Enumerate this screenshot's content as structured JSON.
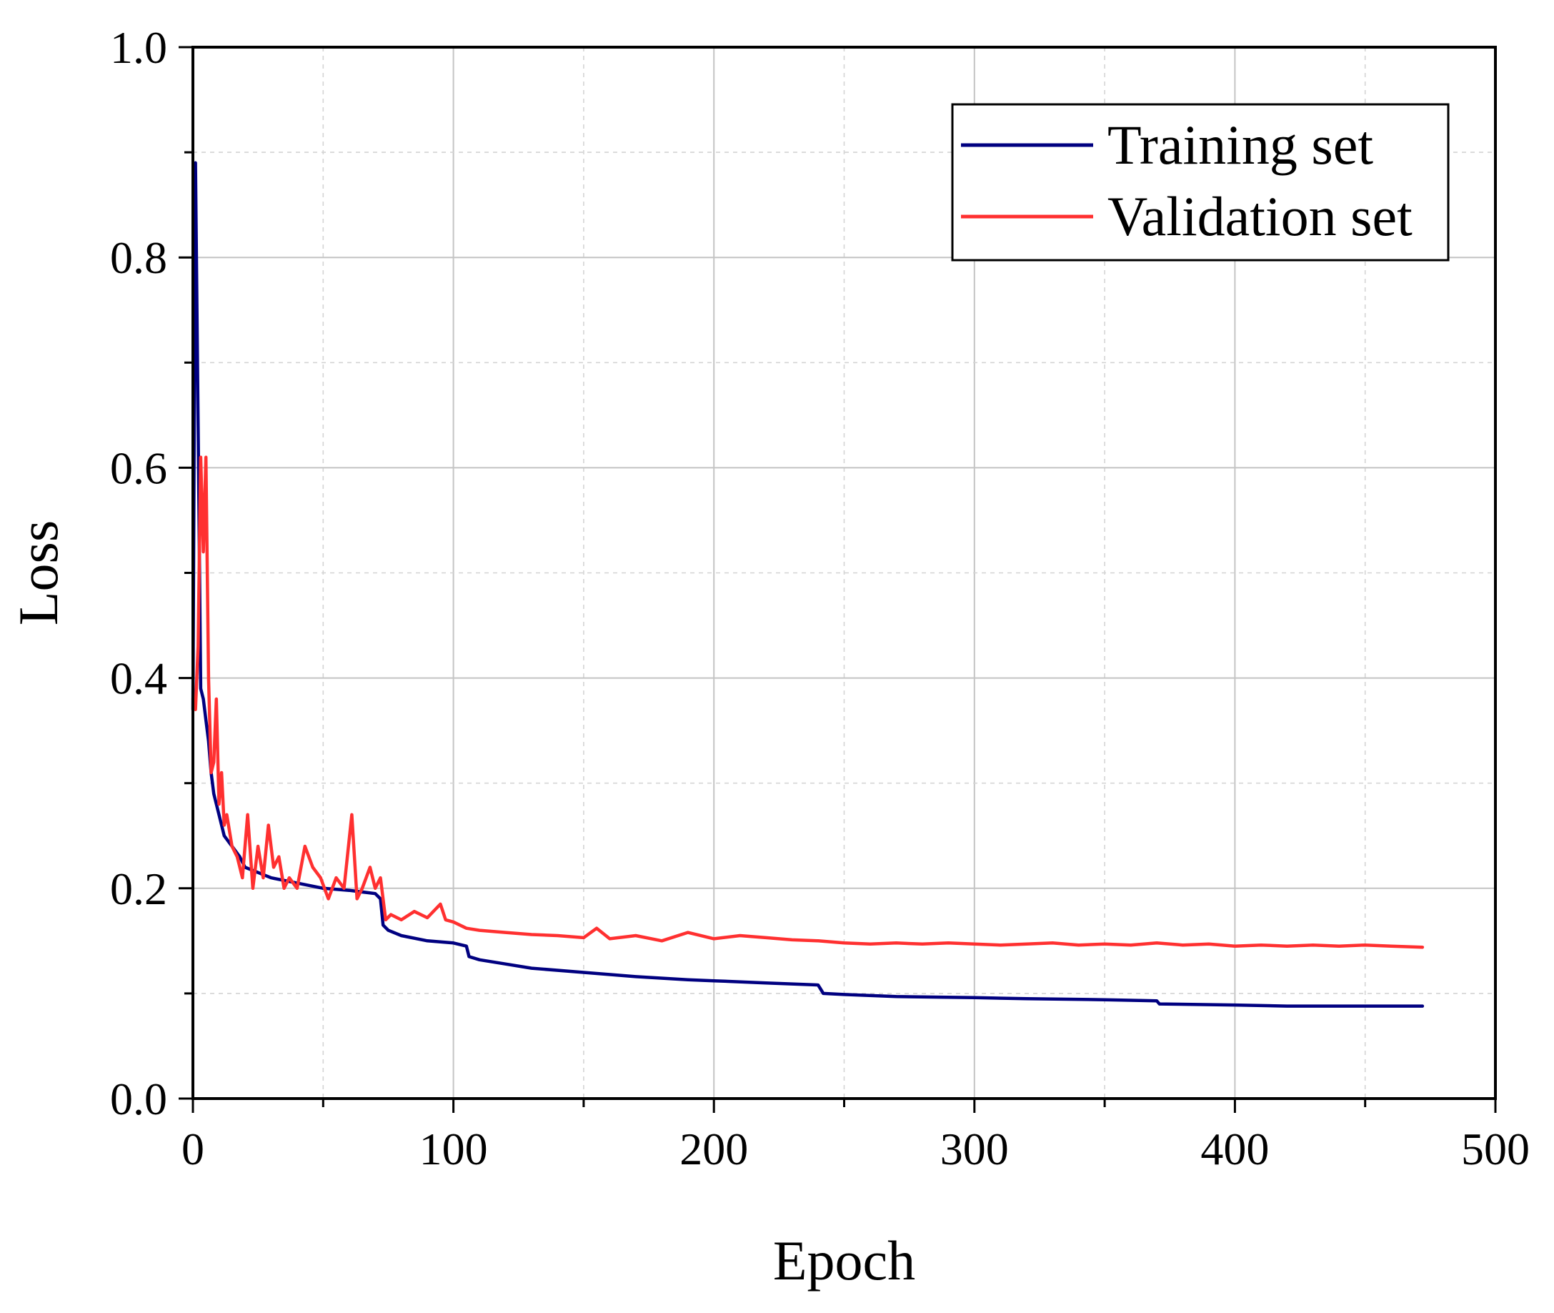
{
  "chart_data": {
    "type": "line",
    "title": "",
    "xlabel": "Epoch",
    "ylabel": "Loss",
    "xlim": [
      0,
      500
    ],
    "ylim": [
      0.0,
      1.0
    ],
    "xticks": [
      0,
      100,
      200,
      300,
      400,
      500
    ],
    "xtick_labels": [
      "0",
      "100",
      "200",
      "300",
      "400",
      "500"
    ],
    "yticks": [
      0.0,
      0.2,
      0.4,
      0.6,
      0.8,
      1.0
    ],
    "ytick_labels": [
      "0.0",
      "0.2",
      "0.4",
      "0.6",
      "0.8",
      "1.0"
    ],
    "grid": true,
    "legend_position": "top-right",
    "series": [
      {
        "name": "Training set",
        "color": "#000080",
        "x": [
          0,
          1,
          2,
          3,
          4,
          5,
          6,
          7,
          8,
          10,
          12,
          15,
          18,
          20,
          25,
          30,
          40,
          50,
          60,
          70,
          72,
          73,
          75,
          80,
          90,
          100,
          105,
          106,
          110,
          120,
          130,
          150,
          170,
          190,
          200,
          220,
          240,
          241,
          242,
          250,
          270,
          300,
          320,
          350,
          370,
          371,
          400,
          420,
          450,
          472
        ],
        "y": [
          0.37,
          0.89,
          0.64,
          0.39,
          0.38,
          0.36,
          0.34,
          0.31,
          0.29,
          0.27,
          0.25,
          0.24,
          0.23,
          0.22,
          0.215,
          0.21,
          0.205,
          0.2,
          0.198,
          0.195,
          0.19,
          0.165,
          0.16,
          0.155,
          0.15,
          0.148,
          0.145,
          0.135,
          0.132,
          0.128,
          0.124,
          0.12,
          0.116,
          0.113,
          0.112,
          0.11,
          0.108,
          0.104,
          0.1,
          0.099,
          0.097,
          0.096,
          0.095,
          0.094,
          0.093,
          0.09,
          0.089,
          0.088,
          0.088,
          0.088
        ]
      },
      {
        "name": "Validation set",
        "color": "#ff3030",
        "x": [
          0,
          1,
          2,
          3,
          4,
          5,
          6,
          7,
          8,
          9,
          10,
          11,
          12,
          13,
          15,
          17,
          19,
          21,
          23,
          25,
          27,
          29,
          31,
          33,
          35,
          37,
          40,
          43,
          46,
          49,
          52,
          55,
          58,
          61,
          63,
          65,
          68,
          70,
          72,
          74,
          76,
          80,
          85,
          90,
          95,
          97,
          100,
          105,
          110,
          120,
          130,
          140,
          150,
          155,
          160,
          170,
          180,
          190,
          200,
          210,
          220,
          230,
          240,
          250,
          260,
          270,
          280,
          290,
          300,
          310,
          320,
          330,
          340,
          350,
          360,
          370,
          380,
          390,
          400,
          410,
          420,
          430,
          440,
          450,
          460,
          472
        ],
        "y": [
          0.38,
          0.37,
          0.43,
          0.61,
          0.52,
          0.61,
          0.4,
          0.31,
          0.32,
          0.38,
          0.28,
          0.31,
          0.26,
          0.27,
          0.24,
          0.23,
          0.21,
          0.27,
          0.2,
          0.24,
          0.21,
          0.26,
          0.22,
          0.23,
          0.2,
          0.21,
          0.2,
          0.24,
          0.22,
          0.21,
          0.19,
          0.21,
          0.2,
          0.27,
          0.19,
          0.2,
          0.22,
          0.2,
          0.21,
          0.17,
          0.175,
          0.17,
          0.178,
          0.172,
          0.185,
          0.17,
          0.168,
          0.162,
          0.16,
          0.158,
          0.156,
          0.155,
          0.153,
          0.162,
          0.152,
          0.155,
          0.15,
          0.158,
          0.152,
          0.155,
          0.153,
          0.151,
          0.15,
          0.148,
          0.147,
          0.148,
          0.147,
          0.148,
          0.147,
          0.146,
          0.147,
          0.148,
          0.146,
          0.147,
          0.146,
          0.148,
          0.146,
          0.147,
          0.145,
          0.146,
          0.145,
          0.146,
          0.145,
          0.146,
          0.145,
          0.144
        ]
      }
    ]
  }
}
